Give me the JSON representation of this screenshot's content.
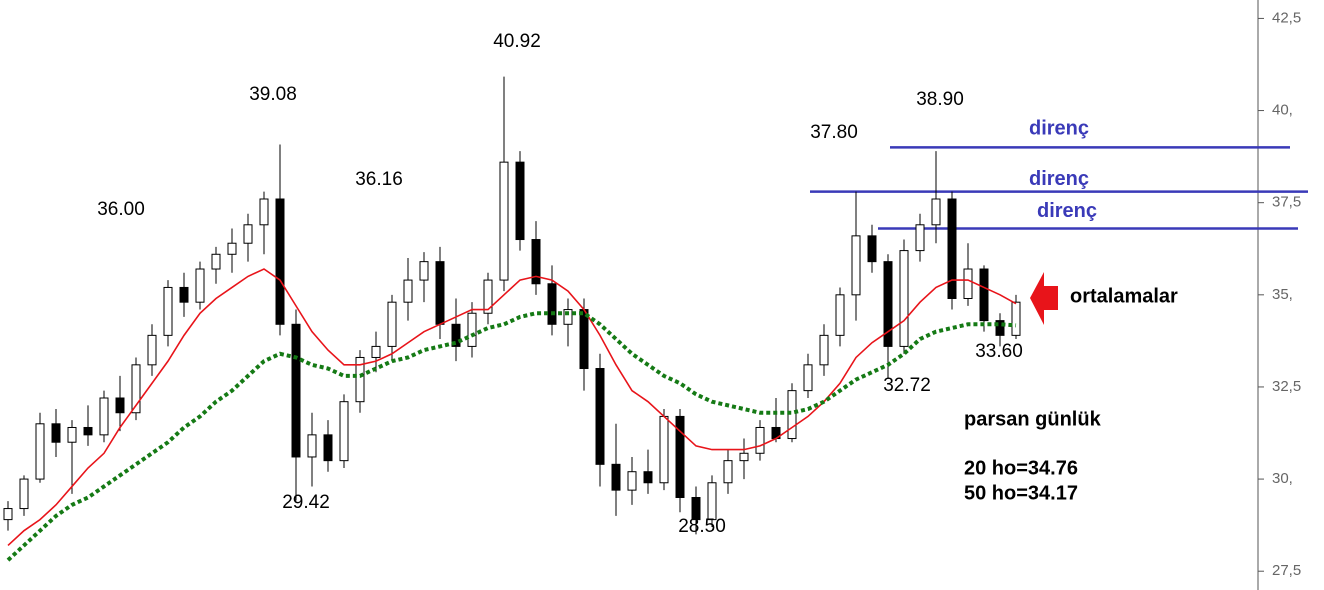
{
  "chart_data": {
    "type": "candlestick",
    "candles": {
      "up_color": "#ffffff",
      "down_color": "#000000",
      "open": [
        28.9,
        29.2,
        30.0,
        31.5,
        31.0,
        31.4,
        31.2,
        32.2,
        31.8,
        33.1,
        33.9,
        35.2,
        34.8,
        35.7,
        36.1,
        36.4,
        36.9,
        37.6,
        34.2,
        30.6,
        31.2,
        30.5,
        32.1,
        33.3,
        33.6,
        34.8,
        35.4,
        35.9,
        34.2,
        33.6,
        34.5,
        35.4,
        38.6,
        36.5,
        35.3,
        34.2,
        34.6,
        33.0,
        30.4,
        29.7,
        30.2,
        29.9,
        31.7,
        29.5,
        28.9,
        29.9,
        30.5,
        30.7,
        31.4,
        31.1,
        32.4,
        33.1,
        33.9,
        35.0,
        36.6,
        35.9,
        33.6,
        36.2,
        36.9,
        37.6,
        34.9,
        35.7,
        34.3,
        33.9
      ],
      "high": [
        29.4,
        30.1,
        31.8,
        31.9,
        31.6,
        32.0,
        32.4,
        32.8,
        33.3,
        34.2,
        35.4,
        35.6,
        35.9,
        36.3,
        36.8,
        37.2,
        37.8,
        39.08,
        34.6,
        31.8,
        31.6,
        32.3,
        33.5,
        34.0,
        35.0,
        36.0,
        36.16,
        36.3,
        34.9,
        34.8,
        35.6,
        40.92,
        38.9,
        37.0,
        35.8,
        34.9,
        34.9,
        33.4,
        31.5,
        30.6,
        30.8,
        31.9,
        31.9,
        29.8,
        30.1,
        30.8,
        31.1,
        31.6,
        32.2,
        32.6,
        33.4,
        34.2,
        35.2,
        37.8,
        36.9,
        36.1,
        36.5,
        37.2,
        38.9,
        37.8,
        36.4,
        35.8,
        34.5,
        35.0
      ],
      "low": [
        28.6,
        29.0,
        29.9,
        30.6,
        29.6,
        30.9,
        31.0,
        31.3,
        31.6,
        32.8,
        33.6,
        34.4,
        34.6,
        35.3,
        35.6,
        35.9,
        36.1,
        33.9,
        29.42,
        29.8,
        30.2,
        30.3,
        31.8,
        32.9,
        33.2,
        34.3,
        34.8,
        33.8,
        33.2,
        33.3,
        34.2,
        35.1,
        36.2,
        35.0,
        33.9,
        33.6,
        32.4,
        29.8,
        29.0,
        29.3,
        29.6,
        29.7,
        29.1,
        28.5,
        28.7,
        29.6,
        30.0,
        30.5,
        31.0,
        31.0,
        32.2,
        32.8,
        33.6,
        34.3,
        35.6,
        32.72,
        33.4,
        35.9,
        36.4,
        34.6,
        34.7,
        34.0,
        33.6,
        33.8
      ],
      "close": [
        29.2,
        30.0,
        31.5,
        31.0,
        31.4,
        31.2,
        32.2,
        31.8,
        33.1,
        33.9,
        35.2,
        34.8,
        35.7,
        36.1,
        36.4,
        36.9,
        37.6,
        34.2,
        30.6,
        31.2,
        30.5,
        32.1,
        33.3,
        33.6,
        34.8,
        35.4,
        35.9,
        34.2,
        33.6,
        34.5,
        35.4,
        38.6,
        36.5,
        35.3,
        34.2,
        34.6,
        33.0,
        30.4,
        29.7,
        30.2,
        29.9,
        31.7,
        29.5,
        28.9,
        29.9,
        30.5,
        30.7,
        31.4,
        31.1,
        32.4,
        33.1,
        33.9,
        35.0,
        36.6,
        35.9,
        33.6,
        36.2,
        36.9,
        37.6,
        34.9,
        35.7,
        34.3,
        33.9,
        34.8
      ]
    },
    "lines": [
      {
        "color": "#e8141a",
        "style": "solid",
        "values": [
          28.2,
          28.6,
          28.9,
          29.3,
          29.8,
          30.3,
          30.7,
          31.4,
          32.0,
          32.6,
          33.2,
          33.9,
          34.5,
          34.9,
          35.2,
          35.5,
          35.7,
          35.4,
          34.7,
          34.0,
          33.5,
          33.1,
          33.1,
          33.2,
          33.4,
          33.7,
          34.0,
          34.2,
          34.4,
          34.6,
          34.6,
          35.0,
          35.4,
          35.5,
          35.4,
          35.1,
          34.6,
          33.9,
          33.1,
          32.4,
          32.1,
          31.7,
          31.3,
          30.9,
          30.8,
          30.8,
          30.8,
          30.9,
          31.1,
          31.4,
          31.7,
          32.1,
          32.6,
          33.3,
          33.7,
          34.0,
          34.3,
          34.8,
          35.2,
          35.4,
          35.4,
          35.2,
          35.0,
          34.76
        ]
      },
      {
        "color": "#157a15",
        "style": "dotted",
        "values": [
          27.8,
          28.2,
          28.6,
          29.0,
          29.3,
          29.5,
          29.8,
          30.1,
          30.4,
          30.7,
          31.0,
          31.4,
          31.7,
          32.1,
          32.4,
          32.8,
          33.2,
          33.4,
          33.3,
          33.1,
          33.0,
          32.8,
          32.8,
          33.0,
          33.2,
          33.3,
          33.5,
          33.6,
          33.7,
          33.9,
          34.1,
          34.2,
          34.4,
          34.5,
          34.5,
          34.5,
          34.5,
          34.2,
          33.8,
          33.4,
          33.1,
          32.8,
          32.6,
          32.3,
          32.1,
          32.0,
          31.9,
          31.8,
          31.8,
          31.8,
          31.9,
          32.1,
          32.4,
          32.7,
          32.9,
          33.1,
          33.4,
          33.8,
          34.0,
          34.1,
          34.2,
          34.2,
          34.2,
          34.17
        ]
      }
    ],
    "ylim": [
      26.99,
      43.0
    ],
    "yticks": [
      {
        "value": 42.5,
        "label": "42,5"
      },
      {
        "value": 40,
        "label": "40,"
      },
      {
        "value": 37.5,
        "label": "37,5"
      },
      {
        "value": 35,
        "label": "35,"
      },
      {
        "value": 32.5,
        "label": "32,5"
      },
      {
        "value": 30,
        "label": "30,"
      },
      {
        "value": 27.5,
        "label": "27,5"
      }
    ],
    "resistance_color": "#3a3ab8",
    "resistance_lines": [
      {
        "label": "direnç",
        "value": 39.0
      },
      {
        "label": "direnç",
        "value": 37.8
      },
      {
        "label": "direnç",
        "value": 36.8
      }
    ],
    "annotations": [
      "39.08",
      "36.00",
      "36.16",
      "40.92",
      "37.80",
      "38.90",
      "29.42",
      "28.50",
      "32.72",
      "33.60"
    ],
    "arrow_label": "ortalamalar",
    "info": [
      "parsan günlük",
      "20 ho=34.76",
      "50 ho=34.17"
    ]
  }
}
